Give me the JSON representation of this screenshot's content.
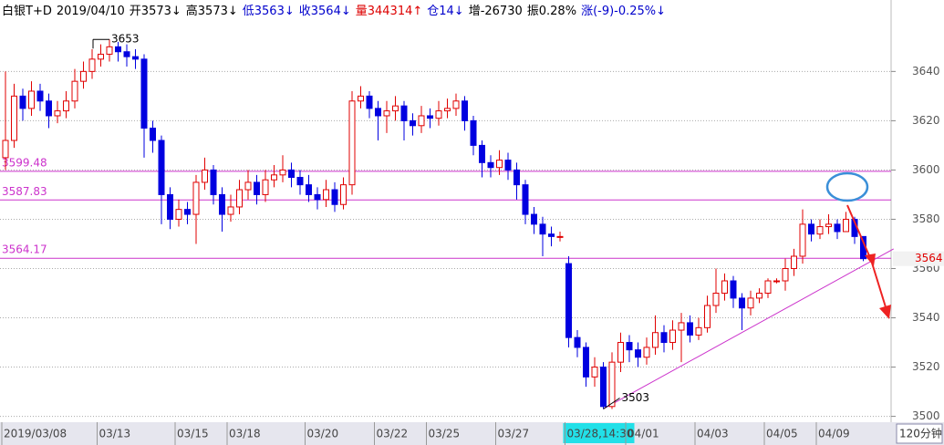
{
  "chart_data": {
    "type": "candlestick",
    "header": [
      {
        "text": "白银T+D",
        "color": "#000000"
      },
      {
        "text": "2019/04/10",
        "color": "#000000"
      },
      {
        "text": "开3573↓",
        "color": "#000000"
      },
      {
        "text": "高3573↓",
        "color": "#000000"
      },
      {
        "text": "低3563↓",
        "color": "#0000cc"
      },
      {
        "text": "收3564↓",
        "color": "#0000cc"
      },
      {
        "text": "量344314↑",
        "color": "#dd0000"
      },
      {
        "text": "仓14↓",
        "color": "#0000cc"
      },
      {
        "text": "增-26730",
        "color": "#000000"
      },
      {
        "text": "振0.28%",
        "color": "#000000"
      },
      {
        "text": "涨(-9)-0.25%↓",
        "color": "#0000cc"
      }
    ],
    "period": "120分钟",
    "categories": [
      "2019/03/08",
      null,
      null,
      null,
      null,
      null,
      null,
      null,
      null,
      null,
      null,
      "03/13",
      null,
      null,
      null,
      null,
      null,
      null,
      null,
      null,
      "03/15",
      null,
      null,
      null,
      null,
      null,
      "03/18",
      null,
      null,
      null,
      null,
      null,
      null,
      null,
      null,
      "03/20",
      null,
      null,
      null,
      null,
      null,
      null,
      null,
      "03/22",
      null,
      null,
      null,
      null,
      null,
      "03/25",
      null,
      null,
      null,
      null,
      null,
      null,
      null,
      "03/27",
      null,
      null,
      null,
      null,
      null,
      null,
      null,
      "03/28,14:30",
      null,
      null,
      null,
      null,
      null,
      null,
      "04/01",
      null,
      null,
      null,
      null,
      null,
      null,
      null,
      "04/03",
      null,
      null,
      null,
      null,
      null,
      null,
      null,
      "04/05",
      null,
      null,
      null,
      null,
      null,
      "04/09",
      null,
      null,
      null,
      null,
      null
    ],
    "cursor_index": 65,
    "open": [
      3605,
      3612,
      3630,
      3625,
      3632,
      3628,
      3622,
      3624,
      3628,
      3636,
      3640,
      3645,
      3647,
      3650,
      3648,
      3646,
      3645,
      3617,
      3612,
      3590,
      3580,
      3584,
      3582,
      3595,
      3600,
      3590,
      3582,
      3585,
      3592,
      3595,
      3590,
      3596,
      3598,
      3600,
      3597,
      3594,
      3590,
      3588,
      3592,
      3586,
      3594,
      3628,
      3630,
      3625,
      3622,
      3624,
      3626,
      3620,
      3618,
      3622,
      3621,
      3624,
      3625,
      3628,
      3620,
      3610,
      3603,
      3601,
      3604,
      3600,
      3594,
      3582,
      3578,
      3574,
      3573,
      3562,
      3532,
      3528,
      3516,
      3520,
      3504,
      3522,
      3530,
      3527,
      3524,
      3528,
      3534,
      3530,
      3535,
      3538,
      3533,
      3536,
      3545,
      3550,
      3555,
      3548,
      3544,
      3548,
      3550,
      3555,
      3555,
      3560,
      3565,
      3578,
      3574,
      3577,
      3578,
      3575,
      3580,
      3573
    ],
    "high": [
      3640,
      3635,
      3633,
      3636,
      3635,
      3631,
      3628,
      3632,
      3641,
      3644,
      3649,
      3651,
      3653,
      3652,
      3651,
      3649,
      3647,
      3620,
      3614,
      3593,
      3588,
      3587,
      3598,
      3605,
      3602,
      3593,
      3590,
      3596,
      3600,
      3598,
      3600,
      3602,
      3606,
      3603,
      3600,
      3598,
      3593,
      3596,
      3595,
      3597,
      3632,
      3634,
      3632,
      3628,
      3628,
      3630,
      3628,
      3623,
      3626,
      3625,
      3628,
      3629,
      3631,
      3630,
      3622,
      3612,
      3606,
      3608,
      3607,
      3603,
      3596,
      3585,
      3581,
      3577,
      3575,
      3565,
      3535,
      3530,
      3524,
      3522,
      3526,
      3534,
      3533,
      3530,
      3532,
      3541,
      3537,
      3539,
      3542,
      3541,
      3540,
      3549,
      3560,
      3558,
      3557,
      3550,
      3551,
      3552,
      3556,
      3556,
      3564,
      3568,
      3584,
      3580,
      3580,
      3582,
      3580,
      3583,
      3581,
      3573
    ],
    "low": [
      3600,
      3609,
      3620,
      3622,
      3624,
      3617,
      3619,
      3621,
      3625,
      3633,
      3637,
      3642,
      3644,
      3644,
      3642,
      3641,
      3605,
      3607,
      3578,
      3576,
      3577,
      3578,
      3570,
      3592,
      3586,
      3575,
      3579,
      3582,
      3588,
      3586,
      3587,
      3593,
      3595,
      3593,
      3590,
      3587,
      3584,
      3585,
      3583,
      3584,
      3590,
      3625,
      3621,
      3612,
      3615,
      3620,
      3612,
      3614,
      3615,
      3617,
      3618,
      3621,
      3622,
      3616,
      3606,
      3597,
      3597,
      3598,
      3596,
      3588,
      3578,
      3574,
      3565,
      3569,
      3571,
      3528,
      3524,
      3512,
      3512,
      3503,
      3503,
      3518,
      3522,
      3520,
      3521,
      3525,
      3526,
      3527,
      3522,
      3530,
      3531,
      3534,
      3542,
      3547,
      3544,
      3535,
      3541,
      3546,
      3548,
      3554,
      3551,
      3557,
      3562,
      3571,
      3572,
      3574,
      3572,
      3576,
      3570,
      3563
    ],
    "close": [
      3612,
      3630,
      3625,
      3632,
      3628,
      3622,
      3624,
      3628,
      3636,
      3640,
      3645,
      3647,
      3650,
      3648,
      3646,
      3645,
      3617,
      3612,
      3590,
      3580,
      3584,
      3582,
      3595,
      3600,
      3590,
      3582,
      3585,
      3592,
      3595,
      3590,
      3596,
      3598,
      3600,
      3597,
      3594,
      3590,
      3588,
      3592,
      3586,
      3594,
      3628,
      3630,
      3625,
      3622,
      3624,
      3626,
      3620,
      3618,
      3622,
      3621,
      3624,
      3625,
      3628,
      3620,
      3610,
      3603,
      3601,
      3604,
      3600,
      3594,
      3582,
      3578,
      3574,
      3573,
      3573,
      3532,
      3528,
      3516,
      3520,
      3504,
      3522,
      3530,
      3527,
      3524,
      3528,
      3534,
      3530,
      3535,
      3538,
      3533,
      3536,
      3545,
      3550,
      3555,
      3548,
      3544,
      3548,
      3550,
      3555,
      3555,
      3560,
      3565,
      3578,
      3574,
      3577,
      3578,
      3575,
      3580,
      3573,
      3564
    ],
    "up_color": "#e00000",
    "down_color": "#0000e0",
    "levels": [
      3599.48,
      3587.83,
      3564.17
    ],
    "level_color": "#cc33cc",
    "trendline": {
      "x": [
        69,
        102.5
      ],
      "y": [
        3503,
        3568
      ]
    },
    "ylim": [
      3498,
      3669
    ],
    "yticks": [
      3500,
      3520,
      3540,
      3560,
      3580,
      3600,
      3620,
      3640
    ],
    "grid": true
  }
}
